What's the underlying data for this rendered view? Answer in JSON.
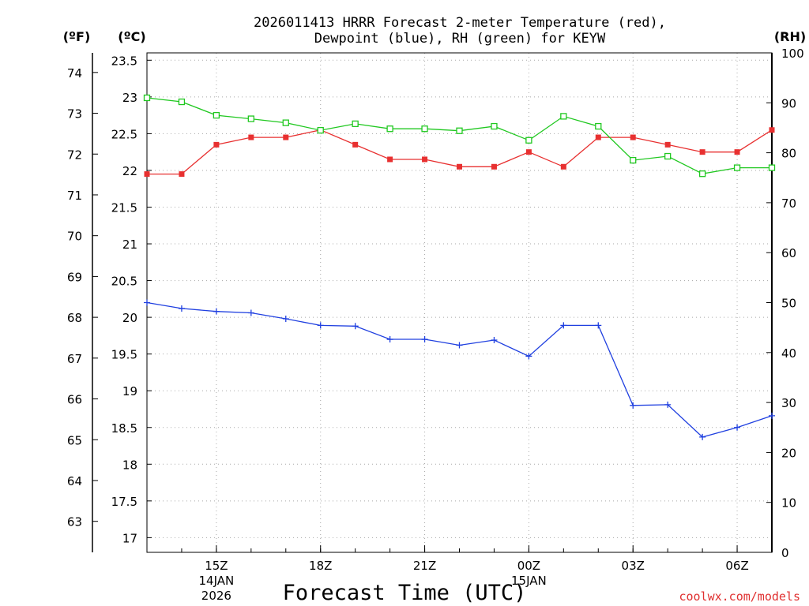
{
  "chart_data": {
    "type": "line",
    "title_line1": "2026011413 HRRR Forecast 2-meter Temperature (red),",
    "title_line2": "Dewpoint (blue), RH (green) for KEYW",
    "xlabel": "Forecast Time (UTC)",
    "credit": "coolwx.com/models",
    "units": {
      "fahrenheit": "(ºF)",
      "celsius": "(ºC)",
      "rh": "(RH)"
    },
    "celsius_range": [
      16.8,
      23.6
    ],
    "rh_range": [
      0,
      100
    ],
    "celsius_ticks": [
      "17",
      "17.5",
      "18",
      "18.5",
      "19",
      "19.5",
      "20",
      "20.5",
      "21",
      "21.5",
      "22",
      "22.5",
      "23",
      "23.5"
    ],
    "fahrenheit_ticks": [
      "63",
      "64",
      "65",
      "66",
      "67",
      "68",
      "69",
      "70",
      "71",
      "72",
      "73",
      "74"
    ],
    "rh_ticks": [
      "0",
      "10",
      "20",
      "30",
      "40",
      "50",
      "60",
      "70",
      "80",
      "90",
      "100"
    ],
    "x_hours": [
      13,
      14,
      15,
      16,
      17,
      18,
      19,
      20,
      21,
      22,
      23,
      24,
      25,
      26,
      27,
      28,
      29,
      30,
      31
    ],
    "x_ticks": [
      {
        "hour": 15,
        "label": "15Z",
        "sub": "14JAN",
        "sub2": "2026"
      },
      {
        "hour": 18,
        "label": "18Z"
      },
      {
        "hour": 21,
        "label": "21Z"
      },
      {
        "hour": 24,
        "label": "00Z",
        "sub": "15JAN"
      },
      {
        "hour": 27,
        "label": "03Z"
      },
      {
        "hour": 30,
        "label": "06Z"
      }
    ],
    "series": [
      {
        "name": "Temperature",
        "axis": "celsius",
        "color": "#e83030",
        "marker": "filled-square",
        "values": [
          21.95,
          21.95,
          22.35,
          22.45,
          22.45,
          22.55,
          22.35,
          22.15,
          22.15,
          22.05,
          22.05,
          22.25,
          22.05,
          22.45,
          22.45,
          22.35,
          22.25,
          22.25,
          22.55
        ]
      },
      {
        "name": "Dewpoint",
        "axis": "celsius",
        "color": "#2040e0",
        "marker": "plus",
        "values": [
          20.2,
          20.12,
          20.08,
          20.06,
          19.98,
          19.89,
          19.88,
          19.7,
          19.7,
          19.62,
          19.69,
          19.47,
          19.89,
          19.89,
          18.8,
          18.81,
          18.37,
          18.5,
          18.66
        ]
      },
      {
        "name": "RH",
        "axis": "rh",
        "color": "#20c820",
        "marker": "open-square",
        "values": [
          91,
          90.2,
          87.5,
          86.8,
          86,
          84.5,
          85.8,
          84.8,
          84.8,
          84.4,
          85.3,
          82.5,
          87.3,
          85.3,
          78.5,
          79.3,
          75.8,
          77,
          77
        ]
      }
    ]
  }
}
